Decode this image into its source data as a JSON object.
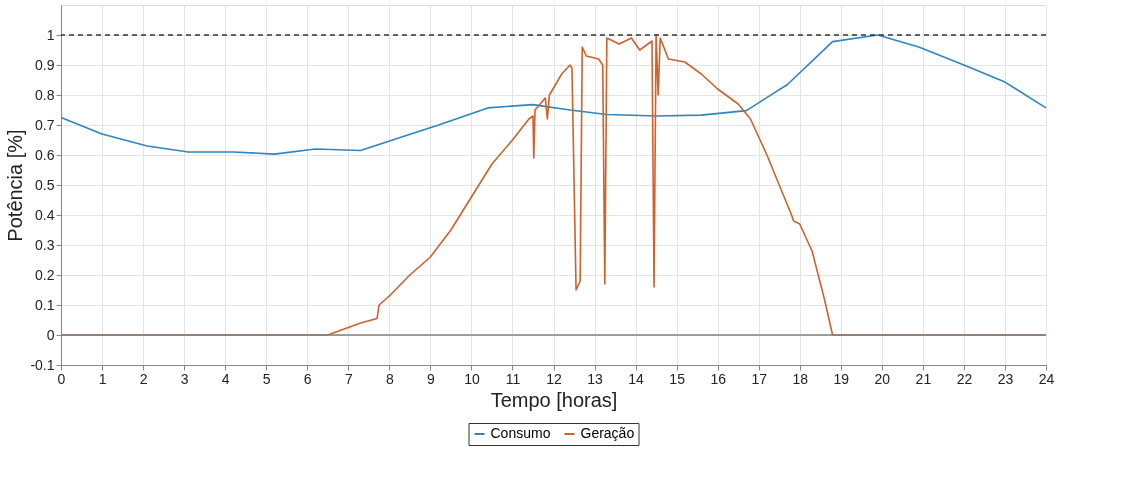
{
  "chart_data": {
    "type": "line",
    "xlabel": "Tempo [horas]",
    "ylabel": "Potência [%]",
    "xlim": [
      0,
      24
    ],
    "xticks": [
      0,
      1,
      2,
      3,
      4,
      5,
      6,
      7,
      8,
      9,
      10,
      11,
      12,
      13,
      14,
      15,
      16,
      17,
      18,
      19,
      20,
      21,
      22,
      23,
      24
    ],
    "ylim": [
      -0.1,
      1.1
    ],
    "yticks": [
      -0.1,
      0,
      0.1,
      0.2,
      0.3,
      0.4,
      0.5,
      0.6,
      0.7,
      0.8,
      0.9,
      1
    ],
    "grid": true,
    "legend": "bottom",
    "line_style": "solid",
    "ref_lines": [
      {
        "axis": "y",
        "value": 1,
        "color": "#333333",
        "line_style": "dashed"
      },
      {
        "axis": "y",
        "value": 0,
        "color": "#808080",
        "line_style": "solid"
      }
    ],
    "series": [
      {
        "name": "Consumo",
        "color": "#2f86bf",
        "x": [
          0,
          1,
          2.1,
          3.1,
          4.2,
          5.2,
          6.2,
          7.3,
          8.3,
          9.2,
          10.4,
          11.5,
          12.4,
          13.3,
          14.5,
          15.6,
          16.7,
          17.7,
          18.8,
          19.9,
          20.9,
          22,
          23,
          24
        ],
        "values": [
          0.725,
          0.67,
          0.63,
          0.61,
          0.61,
          0.603,
          0.62,
          0.615,
          0.66,
          0.7,
          0.757,
          0.768,
          0.75,
          0.735,
          0.73,
          0.733,
          0.748,
          0.835,
          0.978,
          1.0,
          0.96,
          0.9,
          0.843,
          0.757
        ]
      },
      {
        "name": "Geração",
        "color": "#d2602a",
        "x": [
          0,
          6.3,
          6.5,
          7.3,
          7.7,
          7.75,
          8,
          8.5,
          9,
          9.5,
          10,
          10.5,
          11,
          11.4,
          11.5,
          11.52,
          11.55,
          11.8,
          11.85,
          11.9,
          12.2,
          12.4,
          12.45,
          12.55,
          12.65,
          12.7,
          12.8,
          13.1,
          13.2,
          13.25,
          13.3,
          13.6,
          13.9,
          14.1,
          14.4,
          14.45,
          14.5,
          14.55,
          14.6,
          14.8,
          15.2,
          15.6,
          16,
          16.5,
          16.8,
          17.2,
          17.5,
          17.8,
          17.85,
          18,
          18.3,
          18.6,
          18.8,
          24
        ],
        "values": [
          0,
          0,
          0,
          0.04,
          0.055,
          0.1,
          0.13,
          0.2,
          0.26,
          0.35,
          0.46,
          0.57,
          0.65,
          0.72,
          0.73,
          0.59,
          0.75,
          0.79,
          0.72,
          0.8,
          0.87,
          0.9,
          0.89,
          0.15,
          0.18,
          0.96,
          0.93,
          0.92,
          0.9,
          0.17,
          0.99,
          0.97,
          0.99,
          0.95,
          0.98,
          0.16,
          1.0,
          0.8,
          0.99,
          0.92,
          0.91,
          0.87,
          0.82,
          0.77,
          0.72,
          0.6,
          0.5,
          0.4,
          0.38,
          0.37,
          0.28,
          0.12,
          0,
          0
        ]
      }
    ]
  }
}
